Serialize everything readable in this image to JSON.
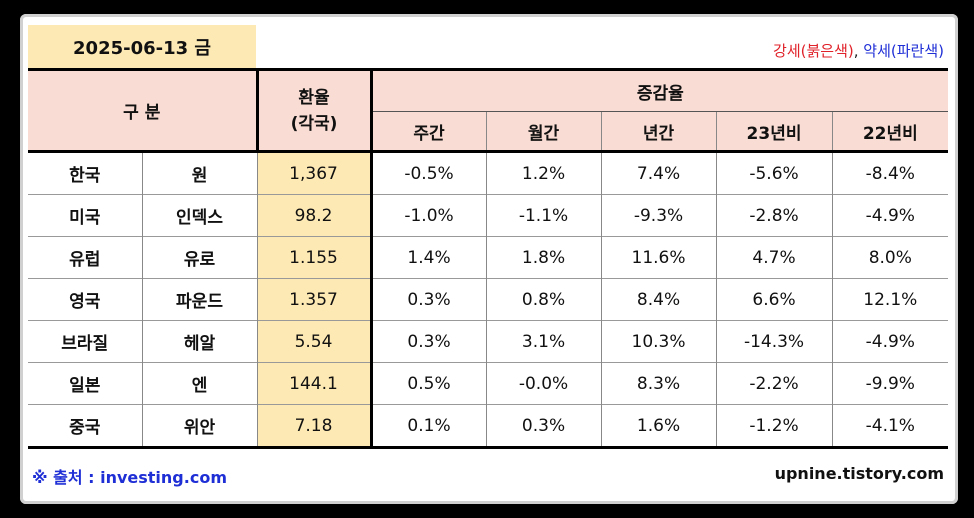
{
  "date_label": "2025-06-13 금",
  "legend": {
    "strong": "강세(붉은색)",
    "separator": ", ",
    "weak": "약세(파란색)"
  },
  "header": {
    "category": "구 분",
    "rate_line1": "환율",
    "rate_line2": "(각국)",
    "change_group": "증감율",
    "periods": [
      "주간",
      "월간",
      "년간",
      "23년비",
      "22년비"
    ]
  },
  "rows": [
    {
      "country": "한국",
      "currency": "원",
      "rate": "1,367",
      "changes": [
        "-0.5%",
        "1.2%",
        "7.4%",
        "-5.6%",
        "-8.4%"
      ]
    },
    {
      "country": "미국",
      "currency": "인덱스",
      "rate": "98.2",
      "changes": [
        "-1.0%",
        "-1.1%",
        "-9.3%",
        "-2.8%",
        "-4.9%"
      ]
    },
    {
      "country": "유럽",
      "currency": "유로",
      "rate": "1.155",
      "changes": [
        "1.4%",
        "1.8%",
        "11.6%",
        "4.7%",
        "8.0%"
      ]
    },
    {
      "country": "영국",
      "currency": "파운드",
      "rate": "1.357",
      "changes": [
        "0.3%",
        "0.8%",
        "8.4%",
        "6.6%",
        "12.1%"
      ]
    },
    {
      "country": "브라질",
      "currency": "헤알",
      "rate": "5.54",
      "changes": [
        "0.3%",
        "3.1%",
        "10.3%",
        "-14.3%",
        "-4.9%"
      ]
    },
    {
      "country": "일본",
      "currency": "엔",
      "rate": "144.1",
      "changes": [
        "0.5%",
        "-0.0%",
        "8.3%",
        "-2.2%",
        "-9.9%"
      ]
    },
    {
      "country": "중국",
      "currency": "위안",
      "rate": "7.18",
      "changes": [
        "0.1%",
        "0.3%",
        "1.6%",
        "-1.2%",
        "-4.1%"
      ]
    }
  ],
  "footer": {
    "source": "※ 출처 : investing.com",
    "site": "upnine.tistory.com"
  },
  "colors": {
    "strong": "#e0222a",
    "weak": "#1f2fd6",
    "highlight": "#fde9b3",
    "header_bg": "#f9dcd3"
  }
}
